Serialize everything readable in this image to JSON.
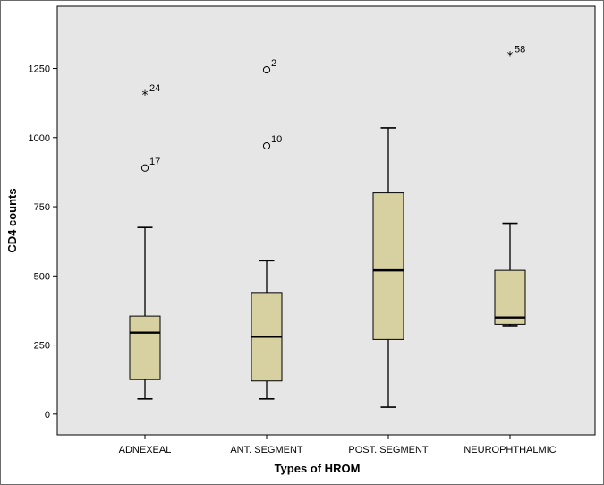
{
  "chart_data": {
    "type": "boxplot",
    "title": "",
    "xlabel": "Types of HROM",
    "ylabel": "CD4 counts",
    "ylim": [
      -75,
      1475
    ],
    "yticks": [
      0,
      250,
      500,
      750,
      1000,
      1250
    ],
    "grid": false,
    "legend": "none",
    "colors": {
      "plot_bg": "#e6e6e6",
      "box_fill": "#d7d0a0",
      "stroke": "#000000",
      "frame": "#6b6b6b"
    },
    "categories": [
      "ADNEXEAL",
      "ANT. SEGMENT",
      "POST. SEGMENT",
      "NEUROPHTHALMIC"
    ],
    "boxes": [
      {
        "category": "ADNEXEAL",
        "whisker_low": 55,
        "q1": 125,
        "median": 295,
        "q3": 355,
        "whisker_high": 675,
        "outliers": [
          {
            "value": 890,
            "label": "17",
            "marker": "circle"
          },
          {
            "value": 1155,
            "label": "24",
            "marker": "star"
          }
        ]
      },
      {
        "category": "ANT. SEGMENT",
        "whisker_low": 55,
        "q1": 120,
        "median": 280,
        "q3": 440,
        "whisker_high": 555,
        "outliers": [
          {
            "value": 970,
            "label": "10",
            "marker": "circle"
          },
          {
            "value": 1245,
            "label": "2",
            "marker": "circle"
          }
        ]
      },
      {
        "category": "POST. SEGMENT",
        "whisker_low": 25,
        "q1": 270,
        "median": 520,
        "q3": 800,
        "whisker_high": 1035,
        "outliers": []
      },
      {
        "category": "NEUROPHTHALMIC",
        "whisker_low": 320,
        "q1": 325,
        "median": 350,
        "q3": 520,
        "whisker_high": 690,
        "outliers": [
          {
            "value": 1295,
            "label": "58",
            "marker": "star"
          }
        ]
      }
    ]
  }
}
